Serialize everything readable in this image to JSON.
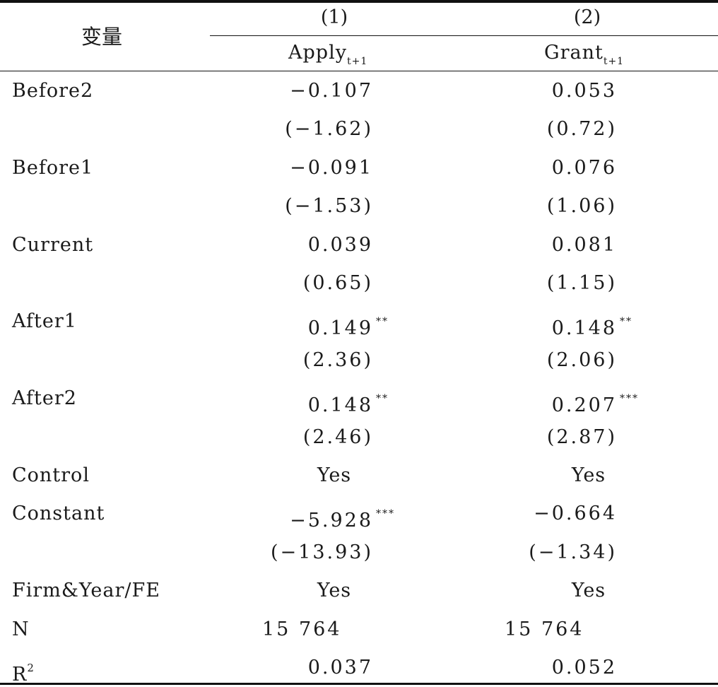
{
  "table": {
    "header": {
      "variable_label": "变量",
      "col1_number": "(1)",
      "col2_number": "(2)",
      "col1_name": "Apply",
      "col1_sub": "t+1",
      "col2_name": "Grant",
      "col2_sub": "t+1"
    },
    "rows": [
      {
        "label": "Before2",
        "c1": "−0.107",
        "c1_star": "",
        "c2": "0.053",
        "c2_star": ""
      },
      {
        "label": "",
        "c1": "(−1.62)",
        "c1_star": "",
        "c2": "(0.72)",
        "c2_star": ""
      },
      {
        "label": "Before1",
        "c1": "−0.091",
        "c1_star": "",
        "c2": "0.076",
        "c2_star": ""
      },
      {
        "label": "",
        "c1": "(−1.53)",
        "c1_star": "",
        "c2": "(1.06)",
        "c2_star": ""
      },
      {
        "label": "Current",
        "c1": "0.039",
        "c1_star": "",
        "c2": "0.081",
        "c2_star": ""
      },
      {
        "label": "",
        "c1": "(0.65)",
        "c1_star": "",
        "c2": "(1.15)",
        "c2_star": ""
      },
      {
        "label": "After1",
        "c1": "0.149",
        "c1_star": "**",
        "c2": "0.148",
        "c2_star": "**"
      },
      {
        "label": "",
        "c1": "(2.36)",
        "c1_star": "",
        "c2": "(2.06)",
        "c2_star": ""
      },
      {
        "label": "After2",
        "c1": "0.148",
        "c1_star": "**",
        "c2": "0.207",
        "c2_star": "***"
      },
      {
        "label": "",
        "c1": "(2.46)",
        "c1_star": "",
        "c2": "(2.87)",
        "c2_star": ""
      },
      {
        "label": "Control",
        "c1": "Yes",
        "c1_star": "",
        "c2": "Yes",
        "c2_star": ""
      },
      {
        "label": "Constant",
        "c1": "−5.928",
        "c1_star": "***",
        "c2": "−0.664",
        "c2_star": ""
      },
      {
        "label": "",
        "c1": "(−13.93)",
        "c1_star": "",
        "c2": "(−1.34)",
        "c2_star": ""
      },
      {
        "label": "Firm&Year/FE",
        "c1": "Yes",
        "c1_star": "",
        "c2": "Yes",
        "c2_star": ""
      },
      {
        "label": "N",
        "c1": "15 764",
        "c1_star": "",
        "c2": "15 764",
        "c2_star": ""
      },
      {
        "label": "R",
        "label_sup": "2",
        "c1": "0.037",
        "c1_star": "",
        "c2": "0.052",
        "c2_star": ""
      }
    ]
  }
}
